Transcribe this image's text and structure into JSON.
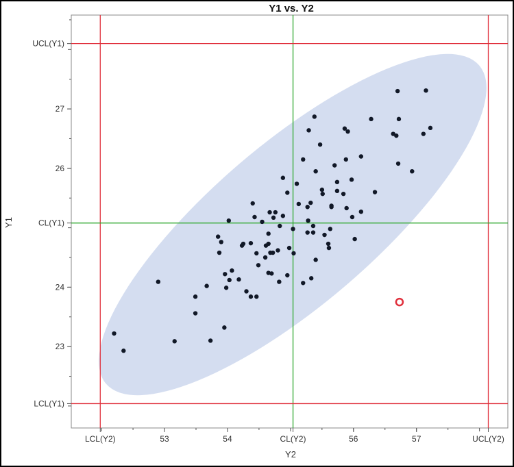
{
  "chart_data": {
    "type": "scatter",
    "title": "Y1 vs. Y2",
    "xlabel": "Y2",
    "ylabel": "Y1",
    "xlim": [
      51.52,
      58.45
    ],
    "ylim": [
      21.63,
      28.58
    ],
    "grid": false,
    "x_ticks": [
      {
        "value": 51.98,
        "label": "LCL(Y2)"
      },
      {
        "value": 53,
        "label": "53"
      },
      {
        "value": 54,
        "label": "54"
      },
      {
        "value": 55.04,
        "label": "CL(Y2)"
      },
      {
        "value": 56,
        "label": "56"
      },
      {
        "value": 57,
        "label": "57"
      },
      {
        "value": 58.14,
        "label": "UCL(Y2)"
      }
    ],
    "y_ticks": [
      {
        "value": 28.1,
        "label": "UCL(Y1)"
      },
      {
        "value": 27,
        "label": "27"
      },
      {
        "value": 26,
        "label": "26"
      },
      {
        "value": 25.08,
        "label": "CL(Y1)"
      },
      {
        "value": 24,
        "label": "24"
      },
      {
        "value": 23,
        "label": "23"
      },
      {
        "value": 22.04,
        "label": "LCL(Y1)"
      }
    ],
    "reference_lines": {
      "x": [
        {
          "name": "LCL(Y2)",
          "value": 51.98,
          "color": "#e0303c"
        },
        {
          "name": "CL(Y2)",
          "value": 55.04,
          "color": "#2ea82e"
        },
        {
          "name": "UCL(Y2)",
          "value": 58.14,
          "color": "#e0303c"
        }
      ],
      "y": [
        {
          "name": "UCL(Y1)",
          "value": 28.1,
          "color": "#e0303c"
        },
        {
          "name": "CL(Y1)",
          "value": 25.08,
          "color": "#2ea82e"
        },
        {
          "name": "LCL(Y1)",
          "value": 22.04,
          "color": "#e0303c"
        }
      ]
    },
    "ellipse_color": "#d4ddf0",
    "point_color": "#111827",
    "outlier_color": "#e0303c",
    "points": [
      [
        55.2,
        26.15
      ],
      [
        54.88,
        25.84
      ],
      [
        55.1,
        25.74
      ],
      [
        54.95,
        25.59
      ],
      [
        54.4,
        25.41
      ],
      [
        55.13,
        25.4
      ],
      [
        54.67,
        25.26
      ],
      [
        54.76,
        25.26
      ],
      [
        54.73,
        25.17
      ],
      [
        54.88,
        25.2
      ],
      [
        54.43,
        25.18
      ],
      [
        54.02,
        25.12
      ],
      [
        54.55,
        25.1
      ],
      [
        54.83,
        25.03
      ],
      [
        55.04,
        24.98
      ],
      [
        54.65,
        24.9
      ],
      [
        53.85,
        24.85
      ],
      [
        53.9,
        24.76
      ],
      [
        54.25,
        24.73
      ],
      [
        54.23,
        24.7
      ],
      [
        54.37,
        24.74
      ],
      [
        54.65,
        24.73
      ],
      [
        54.61,
        24.7
      ],
      [
        53.87,
        24.58
      ],
      [
        54.46,
        24.57
      ],
      [
        54.68,
        24.58
      ],
      [
        54.72,
        24.58
      ],
      [
        54.8,
        24.62
      ],
      [
        54.98,
        24.66
      ],
      [
        55.05,
        24.57
      ],
      [
        54.6,
        24.5
      ],
      [
        54.49,
        24.37
      ],
      [
        54.65,
        24.24
      ],
      [
        54.7,
        24.23
      ],
      [
        54.95,
        24.2
      ],
      [
        53.96,
        24.22
      ],
      [
        54.07,
        24.28
      ],
      [
        54.03,
        24.12
      ],
      [
        54.18,
        24.13
      ],
      [
        54.82,
        24.09
      ],
      [
        52.9,
        24.09
      ],
      [
        53.67,
        24.02
      ],
      [
        53.98,
        23.99
      ],
      [
        54.3,
        23.93
      ],
      [
        54.37,
        23.84
      ],
      [
        54.46,
        23.84
      ],
      [
        53.49,
        23.84
      ],
      [
        53.49,
        23.56
      ],
      [
        53.95,
        23.32
      ],
      [
        53.16,
        23.09
      ],
      [
        53.73,
        23.1
      ],
      [
        52.2,
        23.22
      ],
      [
        52.35,
        22.93
      ],
      [
        56.7,
        27.3
      ],
      [
        57.15,
        27.31
      ],
      [
        55.38,
        26.87
      ],
      [
        56.28,
        26.83
      ],
      [
        56.72,
        26.83
      ],
      [
        55.29,
        26.64
      ],
      [
        55.86,
        26.67
      ],
      [
        55.91,
        26.62
      ],
      [
        56.63,
        26.58
      ],
      [
        56.68,
        26.55
      ],
      [
        57.11,
        26.58
      ],
      [
        57.22,
        26.68
      ],
      [
        55.47,
        26.4
      ],
      [
        55.88,
        26.15
      ],
      [
        56.12,
        26.2
      ],
      [
        55.7,
        26.05
      ],
      [
        55.4,
        25.95
      ],
      [
        56.71,
        26.08
      ],
      [
        56.93,
        25.95
      ],
      [
        55.74,
        25.77
      ],
      [
        55.97,
        25.81
      ],
      [
        55.5,
        25.64
      ],
      [
        55.51,
        25.57
      ],
      [
        55.74,
        25.62
      ],
      [
        55.84,
        25.57
      ],
      [
        56.34,
        25.6
      ],
      [
        55.32,
        25.42
      ],
      [
        55.27,
        25.35
      ],
      [
        55.65,
        25.37
      ],
      [
        55.65,
        25.35
      ],
      [
        55.89,
        25.33
      ],
      [
        56.12,
        25.27
      ],
      [
        55.98,
        25.18
      ],
      [
        55.28,
        25.12
      ],
      [
        55.36,
        25.03
      ],
      [
        55.63,
        24.98
      ],
      [
        55.27,
        24.92
      ],
      [
        55.36,
        24.92
      ],
      [
        55.54,
        24.88
      ],
      [
        56.02,
        24.81
      ],
      [
        55.6,
        24.73
      ],
      [
        55.61,
        24.66
      ],
      [
        55.4,
        24.46
      ],
      [
        55.2,
        24.07
      ],
      [
        55.33,
        24.15
      ]
    ],
    "outliers": [
      [
        56.73,
        23.75
      ]
    ]
  }
}
